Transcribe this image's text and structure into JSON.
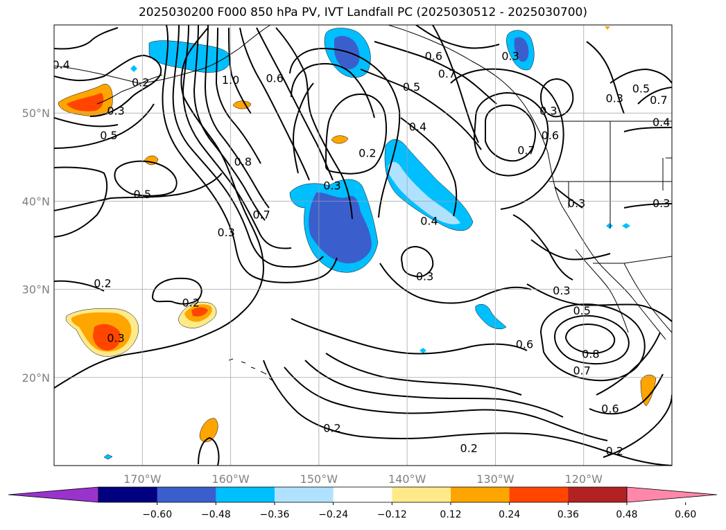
{
  "title": "2025030200 F000 850 hPa PV, IVT Landfall PC (2025030512 - 2025030700)",
  "map": {
    "lon_range": [
      -180,
      -110
    ],
    "lat_range": [
      10,
      60
    ],
    "lat_ticks": [
      {
        "value": 20,
        "label": "20°N"
      },
      {
        "value": 30,
        "label": "30°N"
      },
      {
        "value": 40,
        "label": "40°N"
      },
      {
        "value": 50,
        "label": "50°N"
      }
    ],
    "lon_ticks": [
      {
        "value": -170,
        "label": "170°W"
      },
      {
        "value": -160,
        "label": "160°W"
      },
      {
        "value": -150,
        "label": "150°W"
      },
      {
        "value": -140,
        "label": "140°W"
      },
      {
        "value": -130,
        "label": "130°W"
      },
      {
        "value": -120,
        "label": "120°W"
      }
    ],
    "gridlines": true,
    "contour_labels": [
      {
        "text": "0.4",
        "lon": -179.2,
        "lat": 55.5
      },
      {
        "text": "0.2",
        "lon": -170.2,
        "lat": 53.5
      },
      {
        "text": "0.3",
        "lon": -173.0,
        "lat": 50.3
      },
      {
        "text": "0.5",
        "lon": -173.8,
        "lat": 47.5
      },
      {
        "text": "1.0",
        "lon": -160.0,
        "lat": 53.8
      },
      {
        "text": "0.6",
        "lon": -155.0,
        "lat": 54.0
      },
      {
        "text": "0.8",
        "lon": -158.6,
        "lat": 44.5
      },
      {
        "text": "0.5",
        "lon": -170.0,
        "lat": 40.8
      },
      {
        "text": "0.7",
        "lon": -156.5,
        "lat": 38.5
      },
      {
        "text": "0.3",
        "lon": -160.5,
        "lat": 36.5
      },
      {
        "text": "0.3",
        "lon": -148.5,
        "lat": 41.8
      },
      {
        "text": "0.2",
        "lon": -144.5,
        "lat": 45.5
      },
      {
        "text": "0.6",
        "lon": -137.0,
        "lat": 56.5
      },
      {
        "text": "0.7",
        "lon": -135.5,
        "lat": 54.5
      },
      {
        "text": "0.5",
        "lon": -139.5,
        "lat": 53.0
      },
      {
        "text": "0.4",
        "lon": -138.8,
        "lat": 48.5
      },
      {
        "text": "0.4",
        "lon": -137.5,
        "lat": 37.8
      },
      {
        "text": "0.3",
        "lon": -138.0,
        "lat": 31.5
      },
      {
        "text": "0.2",
        "lon": -164.5,
        "lat": 28.5
      },
      {
        "text": "0.2",
        "lon": -174.5,
        "lat": 30.7
      },
      {
        "text": "0.3",
        "lon": -173.0,
        "lat": 24.5
      },
      {
        "text": "0.2",
        "lon": -148.5,
        "lat": 14.3
      },
      {
        "text": "0.2",
        "lon": -133.0,
        "lat": 12.0
      },
      {
        "text": "0.3",
        "lon": -128.3,
        "lat": 56.5
      },
      {
        "text": "0.3",
        "lon": -124.0,
        "lat": 50.3
      },
      {
        "text": "0.6",
        "lon": -123.8,
        "lat": 47.5
      },
      {
        "text": "0.7",
        "lon": -126.5,
        "lat": 45.8
      },
      {
        "text": "0.3",
        "lon": -116.5,
        "lat": 51.7
      },
      {
        "text": "0.5",
        "lon": -113.5,
        "lat": 52.8
      },
      {
        "text": "0.7",
        "lon": -111.5,
        "lat": 51.5
      },
      {
        "text": "0.4",
        "lon": -111.2,
        "lat": 49.0
      },
      {
        "text": "0.3",
        "lon": -111.2,
        "lat": 39.8
      },
      {
        "text": "0.3",
        "lon": -120.8,
        "lat": 39.8
      },
      {
        "text": "0.3",
        "lon": -122.5,
        "lat": 29.9
      },
      {
        "text": "0.5",
        "lon": -120.2,
        "lat": 27.6
      },
      {
        "text": "0.6",
        "lon": -126.7,
        "lat": 23.8
      },
      {
        "text": "0.8",
        "lon": -119.2,
        "lat": 22.7
      },
      {
        "text": "0.7",
        "lon": -120.2,
        "lat": 20.8
      },
      {
        "text": "0.6",
        "lon": -117.0,
        "lat": 16.5
      },
      {
        "text": "0.2",
        "lon": -116.5,
        "lat": 11.7
      }
    ]
  },
  "colorbar": {
    "colors": [
      "#9933cc",
      "#000080",
      "#3a5fcd",
      "#00bfff",
      "#b0e2ff",
      "#ffffff",
      "#ffea8a",
      "#ffa500",
      "#ff4500",
      "#b22222",
      "#ff88aa"
    ],
    "tick_labels": [
      "−0.60",
      "−0.48",
      "−0.36",
      "−0.24",
      "−0.12",
      "0.12",
      "0.24",
      "0.36",
      "0.48",
      "0.60"
    ]
  }
}
